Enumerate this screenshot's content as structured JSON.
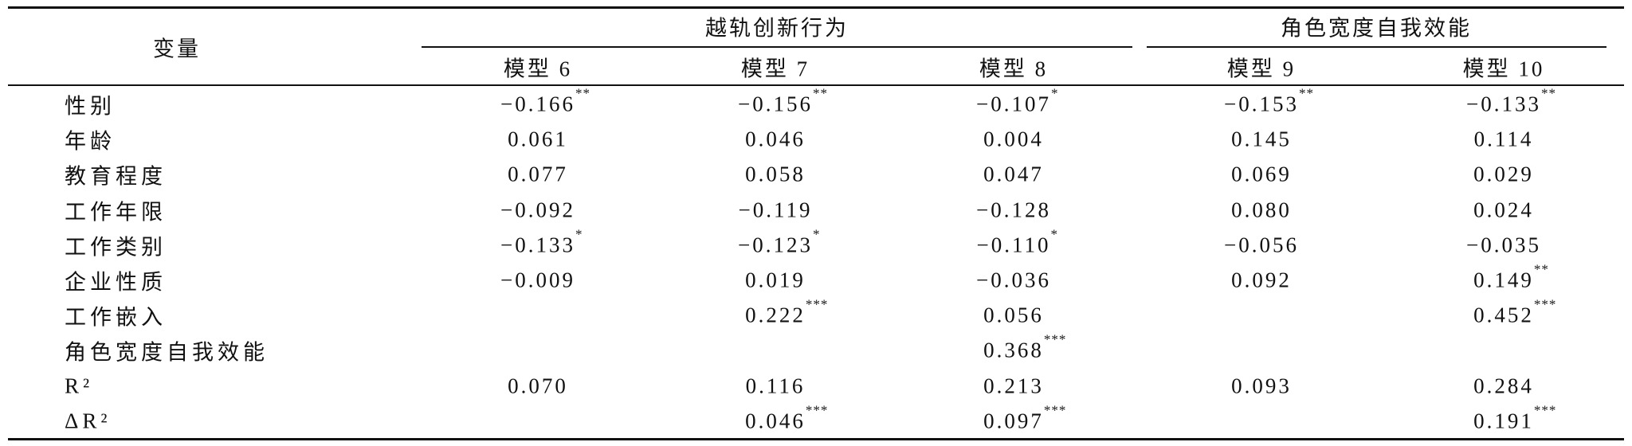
{
  "header": {
    "stub": "变量",
    "groups": [
      "越轨创新行为",
      "角色宽度自我效能"
    ],
    "models": [
      "模型 6",
      "模型 7",
      "模型 8",
      "模型 9",
      "模型 10"
    ]
  },
  "table": {
    "rows": [
      {
        "label": "性别",
        "cells": [
          {
            "value": "−0.166",
            "sig": "**"
          },
          {
            "value": "−0.156",
            "sig": "**"
          },
          {
            "value": "−0.107",
            "sig": "*"
          },
          {
            "value": "−0.153",
            "sig": "**"
          },
          {
            "value": "−0.133",
            "sig": "**"
          }
        ]
      },
      {
        "label": "年龄",
        "cells": [
          {
            "value": "0.061"
          },
          {
            "value": "0.046"
          },
          {
            "value": "0.004"
          },
          {
            "value": "0.145"
          },
          {
            "value": "0.114"
          }
        ]
      },
      {
        "label": "教育程度",
        "cells": [
          {
            "value": "0.077"
          },
          {
            "value": "0.058"
          },
          {
            "value": "0.047"
          },
          {
            "value": "0.069"
          },
          {
            "value": "0.029"
          }
        ]
      },
      {
        "label": "工作年限",
        "cells": [
          {
            "value": "−0.092"
          },
          {
            "value": "−0.119"
          },
          {
            "value": "−0.128"
          },
          {
            "value": "0.080"
          },
          {
            "value": "0.024"
          }
        ]
      },
      {
        "label": "工作类别",
        "cells": [
          {
            "value": "−0.133",
            "sig": "*"
          },
          {
            "value": "−0.123",
            "sig": "*"
          },
          {
            "value": "−0.110",
            "sig": "*"
          },
          {
            "value": "−0.056"
          },
          {
            "value": "−0.035"
          }
        ]
      },
      {
        "label": "企业性质",
        "cells": [
          {
            "value": "−0.009"
          },
          {
            "value": "0.019"
          },
          {
            "value": "−0.036"
          },
          {
            "value": "0.092"
          },
          {
            "value": "0.149",
            "sig": "**"
          }
        ]
      },
      {
        "label": "工作嵌入",
        "cells": [
          null,
          {
            "value": "0.222",
            "sig": "***"
          },
          {
            "value": "0.056"
          },
          null,
          {
            "value": "0.452",
            "sig": "***"
          }
        ]
      },
      {
        "label": "角色宽度自我效能",
        "cells": [
          null,
          null,
          {
            "value": "0.368",
            "sig": "***"
          },
          null,
          null
        ]
      },
      {
        "label": "R²",
        "cells": [
          {
            "value": "0.070"
          },
          {
            "value": "0.116"
          },
          {
            "value": "0.213"
          },
          {
            "value": "0.093"
          },
          {
            "value": "0.284"
          }
        ]
      },
      {
        "label": "ΔR²",
        "cells": [
          null,
          {
            "value": "0.046",
            "sig": "***"
          },
          {
            "value": "0.097",
            "sig": "***"
          },
          null,
          {
            "value": "0.191",
            "sig": "***"
          }
        ]
      }
    ]
  }
}
